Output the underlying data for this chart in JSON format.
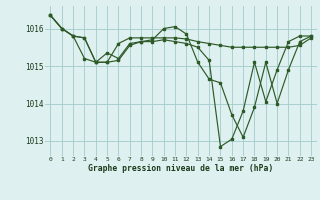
{
  "background_color": "#dff0f0",
  "grid_color": "#aacfcf",
  "line_color": "#2d5a27",
  "marker_color": "#2d5a27",
  "title": "Graphe pression niveau de la mer (hPa)",
  "title_color": "#1a3a1a",
  "xlim": [
    -0.5,
    23.5
  ],
  "ylim": [
    1012.6,
    1016.6
  ],
  "yticks": [
    1013,
    1014,
    1015,
    1016
  ],
  "xticks": [
    0,
    1,
    2,
    3,
    4,
    5,
    6,
    7,
    8,
    9,
    10,
    11,
    12,
    13,
    14,
    15,
    16,
    17,
    18,
    19,
    20,
    21,
    22,
    23
  ],
  "series": [
    [
      1016.35,
      1016.0,
      1015.8,
      1015.75,
      1015.1,
      1015.1,
      1015.15,
      1015.55,
      1015.65,
      1015.7,
      1016.0,
      1016.05,
      1015.85,
      1015.1,
      1014.65,
      1014.55,
      1013.7,
      1013.1,
      1013.9,
      1015.1,
      1014.0,
      1014.9,
      1015.65,
      1015.8
    ],
    [
      1016.35,
      1016.0,
      1015.8,
      1015.75,
      1015.1,
      1015.1,
      1015.6,
      1015.75,
      1015.75,
      1015.75,
      1015.75,
      1015.75,
      1015.72,
      1015.65,
      1015.6,
      1015.55,
      1015.5,
      1015.5,
      1015.5,
      1015.5,
      1015.5,
      1015.5,
      1015.55,
      1015.75
    ],
    [
      1016.35,
      1016.0,
      1015.8,
      1015.2,
      1015.1,
      1015.35,
      1015.2,
      1015.6,
      1015.65,
      1015.65,
      1015.7,
      1015.65,
      1015.6,
      1015.5,
      1015.15,
      1012.85,
      1013.05,
      1013.8,
      1015.1,
      1014.05,
      1014.9,
      1015.65,
      1015.8,
      1015.8
    ]
  ]
}
